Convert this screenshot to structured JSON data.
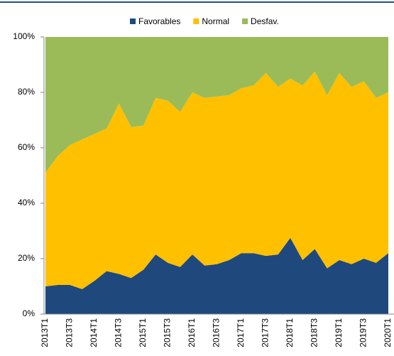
{
  "chart_data": {
    "type": "stacked_area_percent",
    "categories": [
      "2013T1",
      null,
      "2013T3",
      null,
      "2014T1",
      null,
      "2014T3",
      null,
      "2015T1",
      null,
      "2015T3",
      null,
      "2016T1",
      null,
      "2016T3",
      null,
      "2017T1",
      null,
      "2017T3",
      null,
      "2018T1",
      null,
      "2018T3",
      null,
      "2019T1",
      null,
      "2019T3",
      null,
      "2020T1"
    ],
    "series": [
      {
        "name": "Favorables",
        "color": "#1f497d",
        "values": [
          10,
          10.5,
          10.5,
          9,
          12,
          15.5,
          14.5,
          13,
          16,
          21.5,
          18.5,
          17,
          21.5,
          17.5,
          18,
          19.5,
          22,
          22,
          21,
          21.5,
          27.5,
          19.5,
          23.5,
          16.5,
          19.5,
          18,
          20,
          18.5,
          22
        ]
      },
      {
        "name": "Normal",
        "color": "#ffc000",
        "values": [
          41,
          46.5,
          50.5,
          54,
          53,
          51.5,
          61.5,
          54.5,
          52,
          56.5,
          58.5,
          56,
          58.5,
          60.5,
          60.5,
          59.5,
          59.5,
          60.5,
          66,
          60.5,
          57.5,
          63,
          64,
          62.5,
          67.5,
          64,
          64,
          59.5,
          58
        ]
      },
      {
        "name": "Desfav.",
        "color": "#9bbb59",
        "values": [
          49,
          43,
          39,
          37,
          35,
          33,
          24,
          32.5,
          32,
          22,
          23,
          27,
          20,
          22,
          21.5,
          21,
          18.5,
          17.5,
          13,
          18,
          15,
          17.5,
          12.5,
          21,
          13,
          18,
          16,
          22,
          20
        ]
      }
    ],
    "ylim": [
      0,
      100
    ],
    "yticks": [
      {
        "value": 0,
        "label": "0%"
      },
      {
        "value": 20,
        "label": "20%"
      },
      {
        "value": 40,
        "label": "40%"
      },
      {
        "value": 60,
        "label": "60%"
      },
      {
        "value": 80,
        "label": "80%"
      },
      {
        "value": 100,
        "label": "100%"
      }
    ],
    "grid": false
  }
}
